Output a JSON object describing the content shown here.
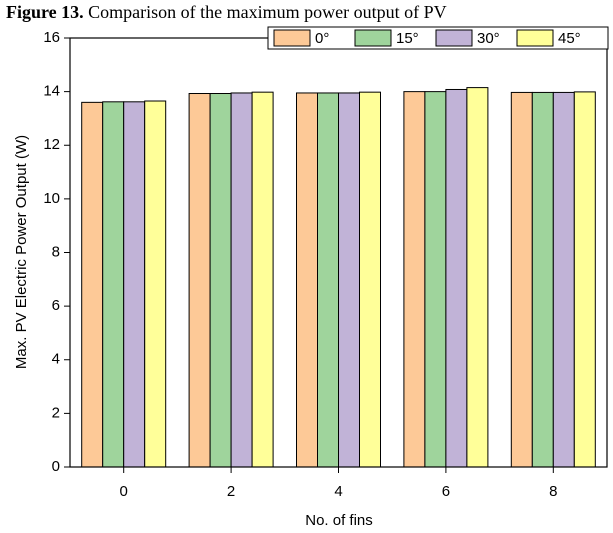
{
  "chart_data": {
    "type": "bar",
    "caption_label": "Figure 13.",
    "caption": "Comparison of the maximum power output of PV",
    "xlabel": "No. of fins",
    "ylabel": "Max. PV Electric Power Output (W)",
    "categories": [
      "0",
      "2",
      "4",
      "6",
      "8"
    ],
    "series": [
      {
        "name": "0°",
        "color": "#fdc997",
        "values": [
          13.6,
          13.93,
          13.95,
          14.0,
          13.97
        ]
      },
      {
        "name": "15°",
        "color": "#9fd49c",
        "values": [
          13.62,
          13.93,
          13.95,
          14.0,
          13.97
        ]
      },
      {
        "name": "30°",
        "color": "#c1b3d7",
        "values": [
          13.62,
          13.95,
          13.95,
          14.08,
          13.97
        ]
      },
      {
        "name": "45°",
        "color": "#ffff99",
        "values": [
          13.65,
          13.98,
          13.98,
          14.15,
          13.99
        ]
      }
    ],
    "ylim": [
      0,
      16
    ],
    "yticks": [
      0,
      2,
      4,
      6,
      8,
      10,
      12,
      14,
      16
    ],
    "legend": "top-right"
  }
}
